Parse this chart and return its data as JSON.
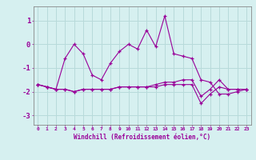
{
  "x": [
    0,
    1,
    2,
    3,
    4,
    5,
    6,
    7,
    8,
    9,
    10,
    11,
    12,
    13,
    14,
    15,
    16,
    17,
    18,
    19,
    20,
    21,
    22,
    23
  ],
  "line1": [
    -1.7,
    -1.8,
    -1.9,
    -0.6,
    0.0,
    -0.4,
    -1.3,
    -1.5,
    -0.8,
    -0.3,
    0.0,
    -0.2,
    0.6,
    -0.1,
    1.2,
    -0.4,
    -0.5,
    -0.6,
    -1.5,
    -1.6,
    -2.1,
    -2.1,
    -2.0,
    -1.9
  ],
  "line2": [
    -1.7,
    -1.8,
    -1.9,
    -1.9,
    -2.0,
    -1.9,
    -1.9,
    -1.9,
    -1.9,
    -1.8,
    -1.8,
    -1.8,
    -1.8,
    -1.8,
    -1.7,
    -1.7,
    -1.7,
    -1.7,
    -2.5,
    -2.1,
    -1.8,
    -1.9,
    -1.9,
    -1.9
  ],
  "line3": [
    -1.7,
    -1.8,
    -1.9,
    -1.9,
    -2.0,
    -1.9,
    -1.9,
    -1.9,
    -1.9,
    -1.8,
    -1.8,
    -1.8,
    -1.8,
    -1.7,
    -1.6,
    -1.6,
    -1.5,
    -1.5,
    -2.2,
    -1.9,
    -1.5,
    -1.9,
    -1.9,
    -1.9
  ],
  "bg_color": "#d6f0f0",
  "line_color": "#990099",
  "grid_color": "#b8dada",
  "xlabel": "Windchill (Refroidissement éolien,°C)",
  "ylim": [
    -3.4,
    1.6
  ],
  "xlim": [
    -0.5,
    23.5
  ],
  "tick_color": "#990099",
  "label_color": "#990099"
}
